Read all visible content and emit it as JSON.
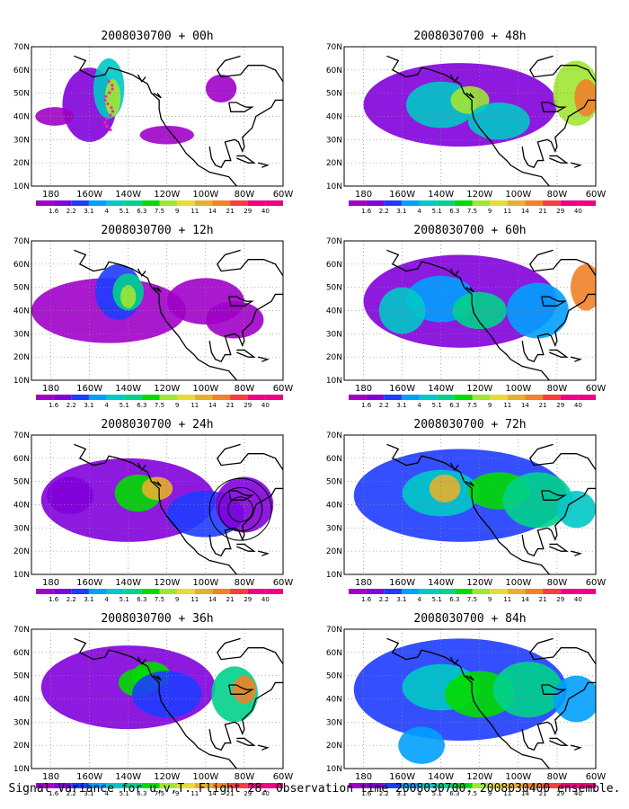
{
  "panels": [
    {
      "title": "2008030700 + 00h",
      "hours": 0
    },
    {
      "title": "2008030700 + 48h",
      "hours": 48
    },
    {
      "title": "2008030700 + 12h",
      "hours": 12
    },
    {
      "title": "2008030700 + 60h",
      "hours": 60
    },
    {
      "title": "2008030700 + 24h",
      "hours": 24
    },
    {
      "title": "2008030700 + 72h",
      "hours": 72
    },
    {
      "title": "2008030700 + 36h",
      "hours": 36
    },
    {
      "title": "2008030700 + 84h",
      "hours": 84
    }
  ],
  "lat_labels": [
    "70N",
    "60N",
    "50N",
    "40N",
    "30N",
    "20N",
    "10N"
  ],
  "lon_labels": [
    "180",
    "160W",
    "140W",
    "120W",
    "100W",
    "80W",
    "60W"
  ],
  "colorbar": {
    "labels": [
      "1.6",
      "2.2",
      "3.1",
      "4",
      "5.1",
      "6.3",
      "7.5",
      "9",
      "11",
      "14",
      "21",
      "29",
      "40"
    ],
    "colors": [
      "#a000c8",
      "#8200dc",
      "#1e3cff",
      "#00a0ff",
      "#00c8c8",
      "#00d28c",
      "#00dc00",
      "#a0e632",
      "#e6dc32",
      "#e6af2d",
      "#f08228",
      "#fa3c3c",
      "#f00082"
    ]
  },
  "footer": "Signal Variance for u,v,T. Flight 28. Observation time 2008030700. 2008030400 ensemble."
}
